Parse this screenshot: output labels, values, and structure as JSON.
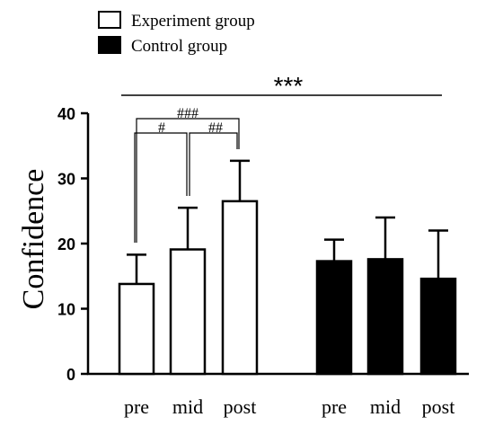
{
  "chart_data": {
    "type": "bar",
    "ylabel": "Confidence",
    "xlabel": "",
    "ylim": [
      0,
      40
    ],
    "yticks": [
      "0",
      "10",
      "20",
      "30",
      "40"
    ],
    "grid": false,
    "legend_position": "top-left",
    "colors": {
      "experiment_fill": "#ffffff",
      "control_fill": "#000000",
      "stroke": "#000000"
    },
    "series": [
      {
        "name": "Experiment group",
        "categories": [
          "pre",
          "mid",
          "post"
        ],
        "values": [
          13.8,
          19.1,
          26.5
        ],
        "errors": [
          4.5,
          6.4,
          6.2
        ]
      },
      {
        "name": "Control group",
        "categories": [
          "pre",
          "mid",
          "post"
        ],
        "values": [
          17.3,
          17.6,
          14.6
        ],
        "errors": [
          3.3,
          6.4,
          7.4
        ]
      }
    ],
    "annotations": {
      "overall": "***",
      "pre_post": "###",
      "pre_mid": "#",
      "mid_post": "##"
    }
  }
}
